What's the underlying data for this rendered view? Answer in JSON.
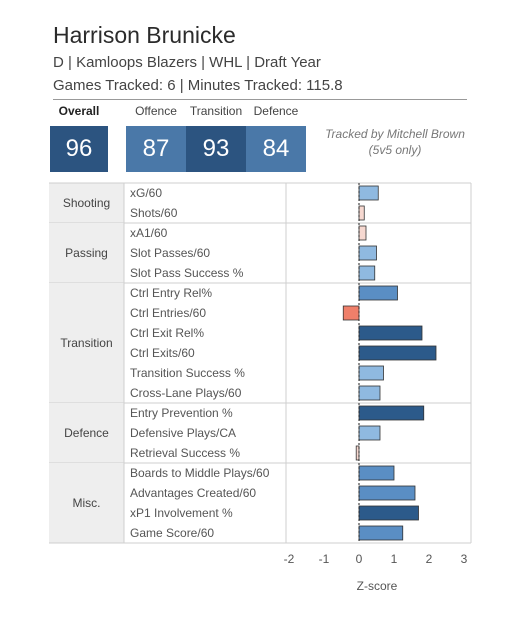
{
  "header": {
    "player_name": "Harrison Brunicke",
    "line1": "D | Kamloops Blazers | WHL | Draft Year",
    "line2": "Games Tracked: 6 | Minutes Tracked: 115.8"
  },
  "scores": {
    "overall": {
      "label": "Overall",
      "value": "96"
    },
    "offence": {
      "label": "Offence",
      "value": "87"
    },
    "transition": {
      "label": "Transition",
      "value": "93"
    },
    "defence": {
      "label": "Defence",
      "value": "84"
    }
  },
  "note": {
    "line1": "Tracked by Mitchell Brown",
    "line2": "(5v5 only)"
  },
  "colors": {
    "overall_box": "#2c5480",
    "offence_box": "#4a78a8",
    "transition_box": "#2c5480",
    "defence_box": "#4a78a8",
    "dark_bar": "#2c5a8a",
    "mid_bar": "#5a8ec4",
    "light_bar": "#8fb9e0",
    "pale_bar": "#f6d8d0",
    "red_bar": "#ef7f6a",
    "category_bg": "#eeeeee"
  },
  "chart_data": {
    "type": "bar",
    "orientation": "horizontal",
    "xlabel": "Z-score",
    "xlim": [
      -2.3,
      3.2
    ],
    "xticks": [
      -2,
      -1,
      0,
      1,
      2,
      3
    ],
    "groups": [
      {
        "category": "Shooting",
        "metrics": [
          {
            "label": "xG/60",
            "value": 0.55,
            "color": "light_bar"
          },
          {
            "label": "Shots/60",
            "value": 0.15,
            "color": "pale_bar"
          }
        ]
      },
      {
        "category": "Passing",
        "metrics": [
          {
            "label": "xA1/60",
            "value": 0.2,
            "color": "pale_bar"
          },
          {
            "label": "Slot Passes/60",
            "value": 0.5,
            "color": "light_bar"
          },
          {
            "label": "Slot Pass Success %",
            "value": 0.45,
            "color": "light_bar"
          }
        ]
      },
      {
        "category": "Transition",
        "metrics": [
          {
            "label": "Ctrl Entry Rel%",
            "value": 1.1,
            "color": "mid_bar"
          },
          {
            "label": "Ctrl Entries/60",
            "value": -0.45,
            "color": "red_bar"
          },
          {
            "label": "Ctrl Exit Rel%",
            "value": 1.8,
            "color": "dark_bar"
          },
          {
            "label": "Ctrl Exits/60",
            "value": 2.2,
            "color": "dark_bar"
          },
          {
            "label": "Transition Success %",
            "value": 0.7,
            "color": "light_bar"
          },
          {
            "label": "Cross-Lane Plays/60",
            "value": 0.6,
            "color": "light_bar"
          }
        ]
      },
      {
        "category": "Defence",
        "metrics": [
          {
            "label": "Entry Prevention %",
            "value": 1.85,
            "color": "dark_bar"
          },
          {
            "label": "Defensive Plays/CA",
            "value": 0.6,
            "color": "light_bar"
          },
          {
            "label": "Retrieval Success %",
            "value": -0.08,
            "color": "pale_bar"
          }
        ]
      },
      {
        "category": "Misc.",
        "metrics": [
          {
            "label": "Boards to Middle Plays/60",
            "value": 1.0,
            "color": "mid_bar"
          },
          {
            "label": "Advantages Created/60",
            "value": 1.6,
            "color": "mid_bar"
          },
          {
            "label": "xP1 Involvement %",
            "value": 1.7,
            "color": "dark_bar"
          },
          {
            "label": "Game Score/60",
            "value": 1.25,
            "color": "mid_bar"
          }
        ]
      }
    ]
  }
}
